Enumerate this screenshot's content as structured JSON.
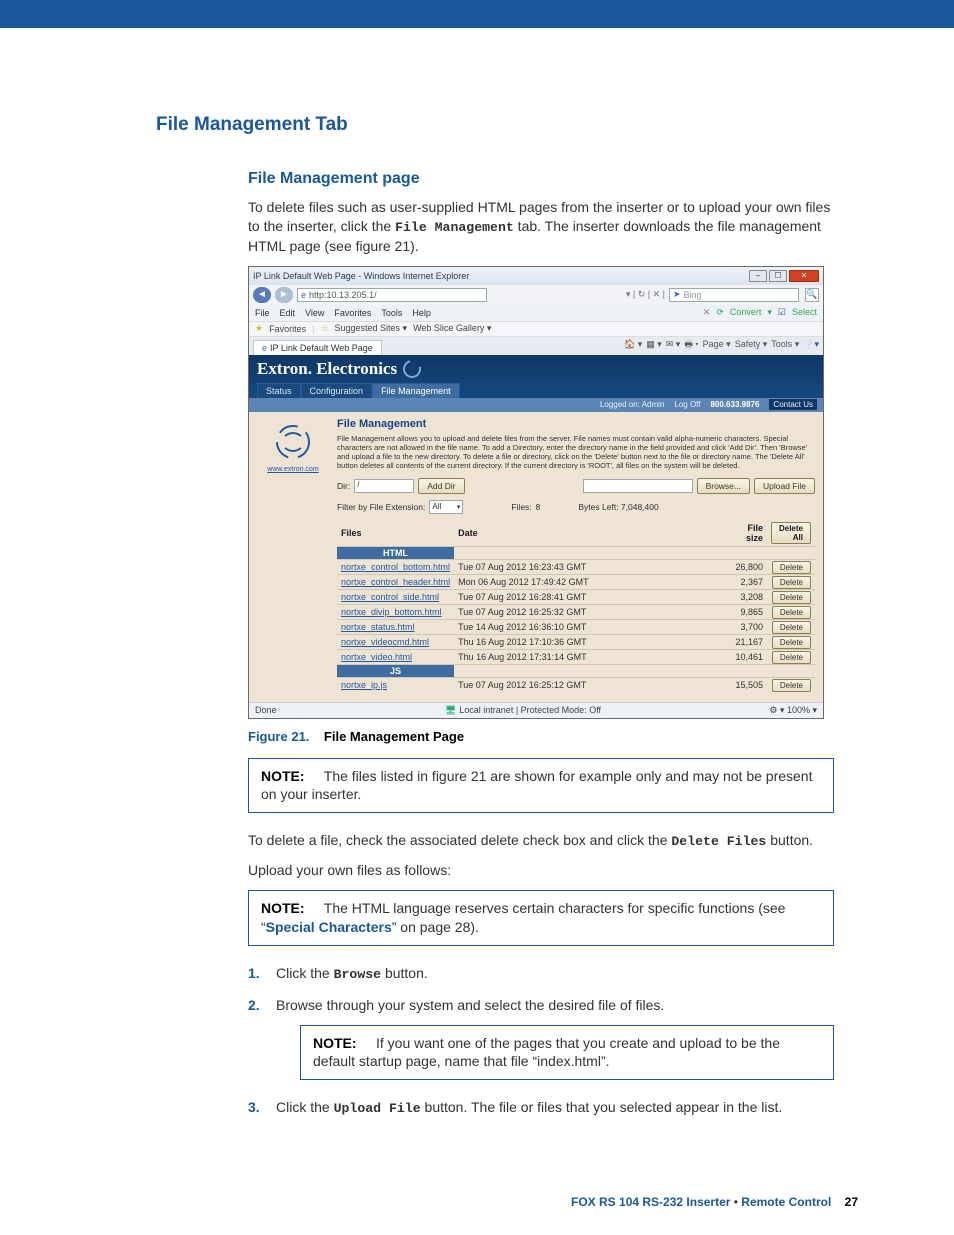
{
  "page": {
    "heading": "File Management Tab",
    "subheading": "File Management page",
    "intro_part1": "To delete files such as user-supplied HTML pages from the inserter or to upload your own files to the inserter, click the ",
    "intro_mono": "File Management",
    "intro_part2": " tab. The inserter downloads the file management HTML page (see figure 21).",
    "figure_label": "Figure 21.",
    "figure_title": "File Management Page",
    "note1_label": "NOTE:",
    "note1_text": "The files listed in figure 21 are shown for example only and may not be present on your inserter.",
    "delete_para_a": "To delete a file, check the associated delete check box and click the ",
    "delete_para_mono": "Delete Files",
    "delete_para_b": " button.",
    "upload_intro": "Upload your own files as follows:",
    "note2_label": "NOTE:",
    "note2_a": "The HTML language reserves certain characters for specific functions (see “",
    "note2_link": "Special Characters",
    "note2_b": "” on page 28).",
    "step1_a": "Click the ",
    "step1_mono": "Browse",
    "step1_b": " button.",
    "step2": "Browse through your system and select the desired file of files.",
    "note3_label": "NOTE:",
    "note3_text": "If you want one of the pages that you create and upload to be the default startup page, name that file “index.html”.",
    "step3_a": "Click the ",
    "step3_mono": "Upload File",
    "step3_b": " button. The file or files that you selected appear in the list.",
    "footer_product": "FOX RS 104 RS-232 Inserter",
    "footer_bullet": " • ",
    "footer_section": "Remote Control",
    "footer_page": "27"
  },
  "browser": {
    "title": "IP Link Default Web Page - Windows Internet Explorer",
    "url_prefix": "http:",
    "url": "10.13.205.1/",
    "search_hint": "Bing",
    "menu": {
      "file": "File",
      "edit": "Edit",
      "view": "View",
      "favorites": "Favorites",
      "tools": "Tools",
      "help": "Help"
    },
    "convert": "Convert",
    "select": "Select",
    "fav_label": "Favorites",
    "fav_item1": "Suggested Sites ▾",
    "fav_item2": "Web Slice Gallery ▾",
    "tab_label": "IP Link Default Web Page",
    "toolbar": {
      "page": "Page ▾",
      "safety": "Safety ▾",
      "tools": "Tools ▾"
    },
    "status_left": "Done",
    "status_mid": "Local intranet | Protected Mode: Off",
    "status_zoom": "100%  ▾"
  },
  "extron": {
    "brand": "Extron. Electronics",
    "tabs": {
      "status": "Status",
      "config": "Configuration",
      "fm": "File Management"
    },
    "topbar": {
      "logged": "Logged on: Admin",
      "logoff": "Log Off",
      "phone": "800.633.9876",
      "contact": "Contact Us"
    },
    "side_link": "www.extron.com",
    "fm_title": "File Management",
    "fm_desc": "File Management allows you to upload and delete files from the server. File names must contain valid alpha-numeric characters. Special characters are not allowed in the file name. To add a Directory, enter the directory name in the field provided and click 'Add Dir'. Then 'Browse' and upload a file to the new directory. To delete a file or directory, click on the 'Delete' button next to the file or directory name. The 'Delete All' button deletes all contents of the current directory. If the current directory is 'ROOT', all files on the system will be deleted.",
    "dir_label": "Dir:",
    "dir_value": "/",
    "add_dir": "Add Dir",
    "browse": "Browse...",
    "upload": "Upload File",
    "filter_label": "Filter by File Extension:",
    "filter_value": "All",
    "files_label": "Files:",
    "files_count": "8",
    "bytes_label": "Bytes Left: 7,048,400",
    "col_files": "Files",
    "col_date": "Date",
    "col_size": "File size",
    "delete_all": "Delete All",
    "group_html": "HTML",
    "group_js": "JS",
    "delete": "Delete",
    "rows_html": [
      {
        "name": "nortxe_control_bottom.html",
        "date": "Tue 07 Aug 2012 16:23:43 GMT",
        "size": "26,800"
      },
      {
        "name": "nortxe_control_header.html",
        "date": "Mon 06 Aug 2012 17:49:42 GMT",
        "size": "2,367"
      },
      {
        "name": "nortxe_control_side.html",
        "date": "Tue 07 Aug 2012 16:28:41 GMT",
        "size": "3,208"
      },
      {
        "name": "nortxe_divip_bottom.html",
        "date": "Tue 07 Aug 2012 16:25:32 GMT",
        "size": "9,865"
      },
      {
        "name": "nortxe_status.html",
        "date": "Tue 14 Aug 2012 16:36:10 GMT",
        "size": "3,700"
      },
      {
        "name": "nortxe_videocmd.html",
        "date": "Thu 16 Aug 2012 17:10:36 GMT",
        "size": "21,167"
      },
      {
        "name": "nortxe_video.html",
        "date": "Thu 16 Aug 2012 17:31:14 GMT",
        "size": "10,461"
      }
    ],
    "rows_js": [
      {
        "name": "nortxe_ip.js",
        "date": "Tue 07 Aug 2012 16:25:12 GMT",
        "size": "15,505"
      }
    ]
  },
  "colors": {
    "brand_blue": "#1a579b",
    "note_border": "#1a579b"
  }
}
